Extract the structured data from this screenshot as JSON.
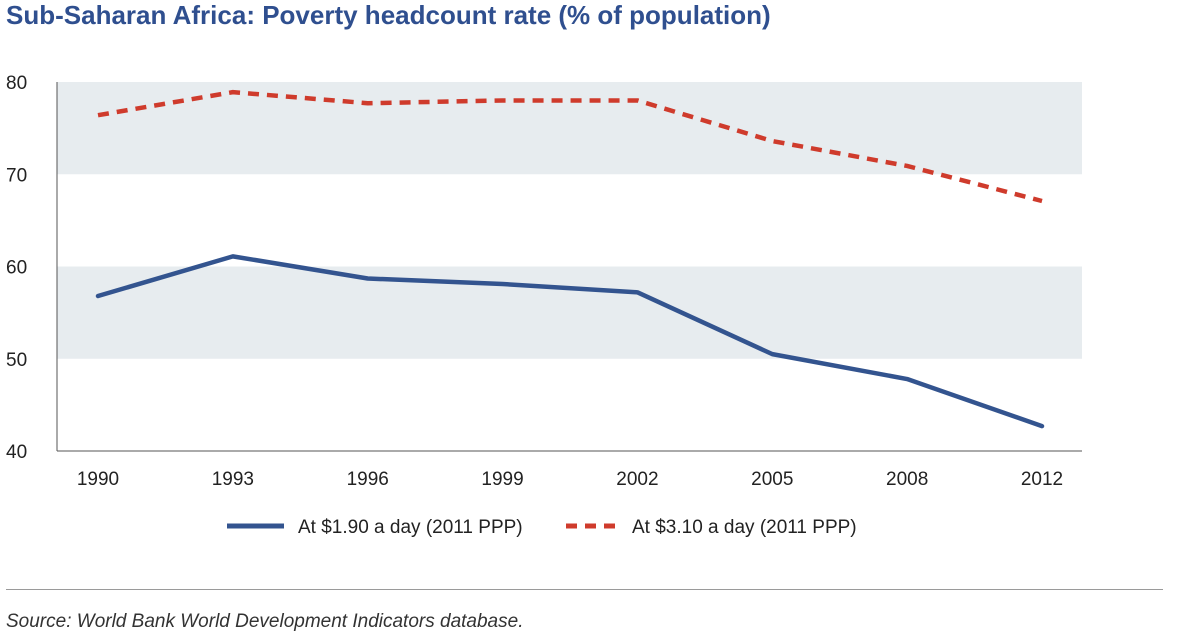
{
  "title": "Sub-Saharan Africa: Poverty headcount rate (% of population)",
  "source": "Source: World Bank World Development Indicators database.",
  "chart_data": {
    "type": "line",
    "title": "Sub-Saharan Africa: Poverty headcount rate (% of population)",
    "categories": [
      "1990",
      "1993",
      "1996",
      "1999",
      "2002",
      "2005",
      "2008",
      "2012"
    ],
    "ylim": [
      40,
      80
    ],
    "yticks": [
      "40",
      "50",
      "60",
      "70",
      "80"
    ],
    "grid": "alternating shaded bands",
    "legend_position": "bottom",
    "series": [
      {
        "name": "At $1.90 a day (2011 PPP)",
        "values": [
          56.8,
          61.1,
          58.7,
          58.1,
          57.2,
          50.5,
          47.8,
          42.7
        ],
        "color": "#33548f",
        "style": "solid"
      },
      {
        "name": "At $3.10 a day (2011 PPP)",
        "values": [
          76.4,
          78.9,
          77.7,
          78.0,
          78.0,
          73.6,
          70.9,
          67.1
        ],
        "color": "#cf3b2c",
        "style": "dashed"
      }
    ],
    "band_color": "#e7ecef"
  }
}
